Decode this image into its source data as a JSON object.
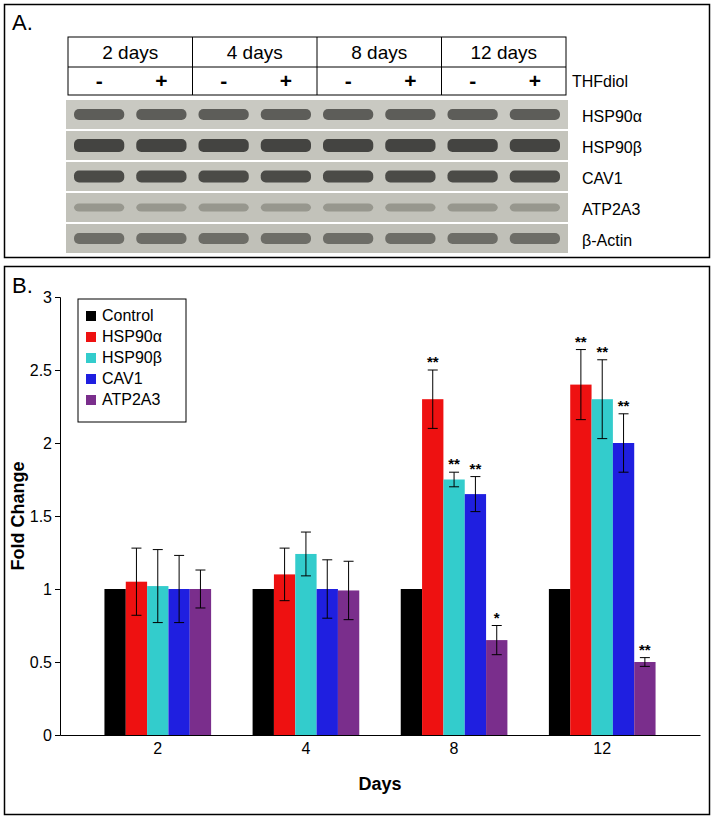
{
  "blot": {
    "label": "A.",
    "time_points": [
      "2 days",
      "4 days",
      "8 days",
      "12 days"
    ],
    "treatment": {
      "name": "THFdiol",
      "levels": [
        "-",
        "+"
      ]
    },
    "proteins": [
      "HSP90α",
      "HSP90β",
      "CAV1",
      "ATP2A3",
      "β-Actin"
    ]
  },
  "chart_data": {
    "type": "bar",
    "title": "B.",
    "x_label": "Days",
    "y_label": "Fold Change",
    "categories": [
      "2",
      "4",
      "8",
      "12"
    ],
    "ylim": [
      0,
      3
    ],
    "yticks": [
      0,
      0.5,
      1,
      1.5,
      2,
      2.5,
      3
    ],
    "grid": false,
    "legend": "top-left",
    "series": [
      {
        "name": "Control",
        "color": "#000000",
        "values": [
          1,
          1,
          1,
          1
        ]
      },
      {
        "name": "HSP90α",
        "color": "#ee1111",
        "values": [
          1.05,
          1.1,
          2.3,
          2.4
        ],
        "errors": [
          0.23,
          0.18,
          0.2,
          0.24
        ],
        "annotations": [
          null,
          null,
          "**",
          "**"
        ]
      },
      {
        "name": "HSP90β",
        "color": "#33cccc",
        "values": [
          1.02,
          1.24,
          1.75,
          2.3
        ],
        "errors": [
          0.25,
          0.15,
          0.05,
          0.27
        ],
        "annotations": [
          null,
          null,
          "**",
          "**"
        ]
      },
      {
        "name": "CAV1",
        "color": "#1f1fe0",
        "values": [
          1.0,
          1.0,
          1.65,
          2.0
        ],
        "errors": [
          0.23,
          0.2,
          0.12,
          0.2
        ],
        "annotations": [
          null,
          null,
          "**",
          "**"
        ]
      },
      {
        "name": "ATP2A3",
        "color": "#7a2e8c",
        "values": [
          1.0,
          0.99,
          0.65,
          0.5
        ],
        "errors": [
          0.13,
          0.2,
          0.1,
          0.03
        ],
        "annotations": [
          null,
          null,
          "*",
          "**"
        ]
      }
    ]
  }
}
